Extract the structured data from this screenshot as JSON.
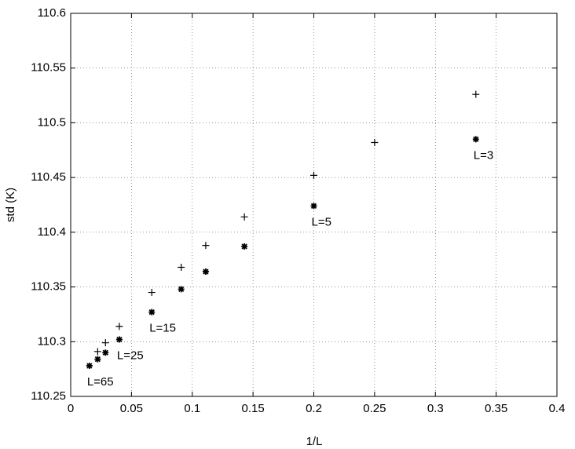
{
  "chart_data": {
    "type": "scatter",
    "xlabel": "1/L",
    "ylabel": "std (K)",
    "xlim": [
      0,
      0.4
    ],
    "ylim": [
      110.25,
      110.6
    ],
    "xticks": [
      0,
      0.05,
      0.1,
      0.15,
      0.2,
      0.25,
      0.3,
      0.35,
      0.4
    ],
    "yticks": [
      110.25,
      110.3,
      110.35,
      110.4,
      110.45,
      110.5,
      110.55,
      110.6
    ],
    "grid": true,
    "series": [
      {
        "marker": "plus",
        "color": "#000000",
        "x": [
          0.3333,
          0.25,
          0.2,
          0.1429,
          0.1111,
          0.0909,
          0.0667,
          0.04,
          0.0286,
          0.0222
        ],
        "values": [
          110.526,
          110.482,
          110.452,
          110.414,
          110.388,
          110.368,
          110.345,
          110.314,
          110.299,
          110.291
        ]
      },
      {
        "marker": "star",
        "color": "#000000",
        "x": [
          0.3333,
          0.2,
          0.1429,
          0.1111,
          0.0909,
          0.0667,
          0.04,
          0.0286,
          0.0222,
          0.0154
        ],
        "values": [
          110.485,
          110.424,
          110.387,
          110.364,
          110.348,
          110.327,
          110.302,
          110.29,
          110.284,
          110.278
        ]
      }
    ],
    "annotations": [
      "L=3",
      "L=5",
      "L=15",
      "L=25",
      "L=65"
    ]
  }
}
